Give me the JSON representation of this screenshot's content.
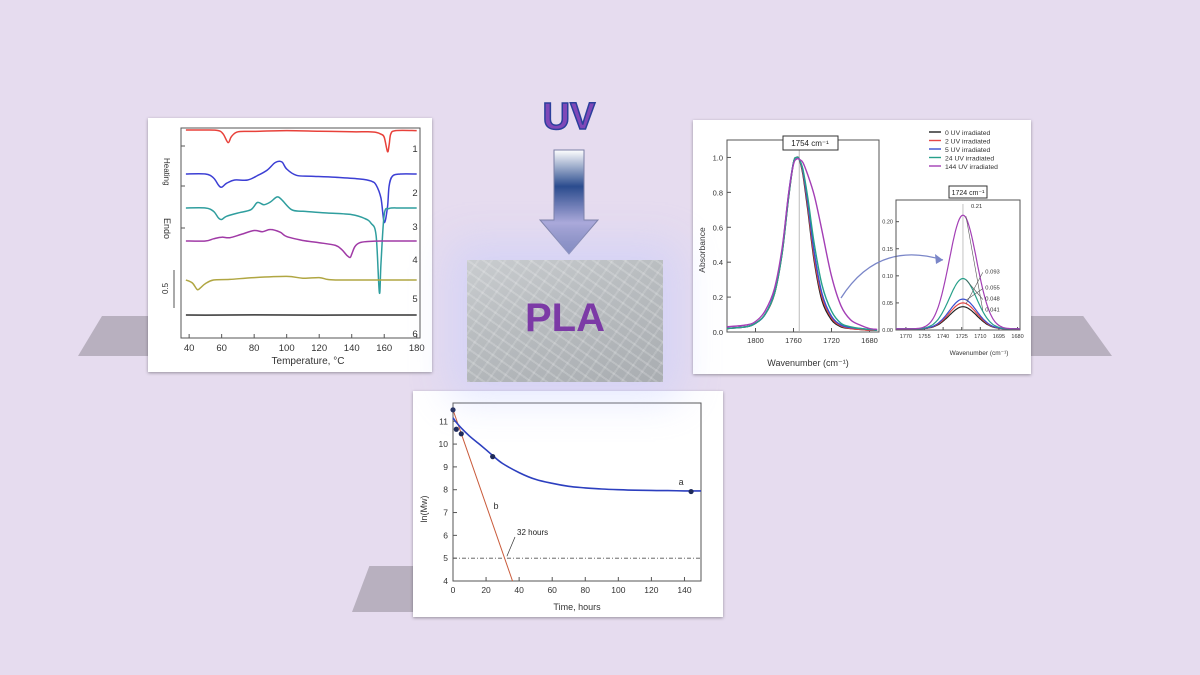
{
  "uv_label": "UV",
  "pla_label": "PLA",
  "chart_data": [
    {
      "type": "line",
      "chart": "dsc",
      "xlabel": "Temperature, °C",
      "ylabel": "Endo",
      "ylabel_top": "Heating",
      "scale_bar_label": "0.5",
      "x_ticks": [
        40,
        60,
        80,
        100,
        120,
        140,
        160,
        180
      ],
      "xlim": [
        35,
        182
      ],
      "curve_labels": [
        "1",
        "2",
        "3",
        "4",
        "5",
        "6"
      ],
      "series": [
        {
          "name": "1",
          "color": "#e8413a",
          "x": [
            38,
            50,
            58,
            61,
            64,
            66,
            70,
            80,
            100,
            120,
            140,
            150,
            155,
            158,
            160,
            162,
            163,
            164,
            167,
            180
          ],
          "y": [
            0,
            0,
            0.05,
            0.35,
            1.05,
            0.55,
            0.15,
            0.12,
            0.05,
            0.1,
            0.15,
            0.15,
            0.2,
            0.35,
            0.6,
            1.8,
            1.25,
            0.35,
            0.05,
            0.05
          ]
        },
        {
          "name": "2",
          "color": "#3c3fd4",
          "x": [
            38,
            50,
            55,
            58,
            60,
            63,
            68,
            76,
            82,
            88,
            93,
            97,
            100,
            106,
            115,
            130,
            145,
            152,
            155,
            158,
            160,
            162,
            163,
            165,
            170,
            180
          ],
          "y": [
            0,
            0,
            0.35,
            1.0,
            1.2,
            0.85,
            0.55,
            0.55,
            0.15,
            -0.35,
            -1.05,
            -1.1,
            -0.45,
            0.12,
            0.2,
            0.3,
            0.45,
            0.65,
            1.0,
            2.2,
            4.4,
            3.0,
            1.1,
            0.2,
            0,
            0
          ]
        },
        {
          "name": "3",
          "color": "#2f9e9e",
          "x": [
            38,
            50,
            55,
            58,
            60,
            63,
            70,
            78,
            82,
            86,
            90,
            94,
            97,
            103,
            110,
            125,
            140,
            148,
            152,
            155,
            157,
            158,
            160,
            163,
            170,
            180
          ],
          "y": [
            0,
            0,
            0.3,
            0.9,
            1.05,
            0.75,
            0.45,
            0.15,
            -0.5,
            -0.3,
            -0.55,
            -1.0,
            -0.75,
            0.15,
            0.3,
            0.45,
            0.6,
            0.95,
            1.4,
            2.5,
            7.7,
            5.0,
            0.6,
            0.05,
            0,
            0
          ]
        },
        {
          "name": "4",
          "color": "#a03aa6",
          "x": [
            38,
            50,
            55,
            60,
            65,
            72,
            80,
            85,
            90,
            96,
            100,
            110,
            120,
            130,
            134,
            137,
            139,
            140,
            142,
            145,
            150,
            160,
            180
          ],
          "y": [
            0,
            0,
            -0.2,
            -0.35,
            -0.3,
            -0.6,
            -0.95,
            -0.85,
            -1.05,
            -0.8,
            -0.4,
            -0.05,
            0.15,
            0.4,
            0.8,
            1.3,
            1.5,
            1.2,
            0.5,
            0.15,
            0.05,
            0,
            0
          ]
        },
        {
          "name": "5",
          "color": "#b0a642",
          "x": [
            38,
            42,
            45,
            47,
            50,
            55,
            65,
            80,
            100,
            110,
            120,
            125,
            130,
            140,
            150,
            160,
            180
          ],
          "y": [
            0,
            0.25,
            0.8,
            0.65,
            0.3,
            0,
            -0.05,
            -0.2,
            -0.3,
            -0.15,
            -0.2,
            -0.05,
            0,
            0,
            0,
            0,
            0
          ]
        },
        {
          "name": "6",
          "color": "#333333",
          "x": [
            38,
            50,
            80,
            120,
            150,
            180
          ],
          "y": [
            0,
            0.02,
            -0.02,
            0.02,
            0,
            0
          ]
        }
      ]
    },
    {
      "type": "line",
      "chart": "ftir",
      "xlabel": "Wavenumber (cm⁻¹)",
      "ylabel": "Absorbance",
      "peak_label": "1754 cm⁻¹",
      "x_ticks": [
        1800,
        1760,
        1720,
        1680
      ],
      "y_ticks": [
        0.0,
        0.2,
        0.4,
        0.6,
        0.8,
        1.0
      ],
      "xlim": [
        1830,
        1670
      ],
      "ylim": [
        0,
        1.1
      ],
      "legend": [
        "0 UV   irradiated",
        "2 UV   irradiated",
        "5 UV   irradiated",
        "24 UV   irradiated",
        "144 UV irradiated"
      ],
      "legend_colors": [
        "#222222",
        "#e54747",
        "#3a4fd0",
        "#27a08a",
        "#a33fb5"
      ],
      "series": [
        {
          "name": "0 UV   irradiated",
          "color": "#222222",
          "x": [
            1830,
            1810,
            1800,
            1790,
            1780,
            1772,
            1765,
            1760,
            1757,
            1754,
            1750,
            1745,
            1738,
            1730,
            1720,
            1710,
            1700,
            1690,
            1680,
            1672
          ],
          "y": [
            0.02,
            0.03,
            0.05,
            0.1,
            0.22,
            0.45,
            0.78,
            0.97,
            1.0,
            0.99,
            0.9,
            0.7,
            0.4,
            0.18,
            0.07,
            0.03,
            0.02,
            0.015,
            0.01,
            0.01
          ]
        },
        {
          "name": "2 UV   irradiated",
          "color": "#e54747",
          "x": [
            1830,
            1810,
            1800,
            1790,
            1780,
            1772,
            1765,
            1760,
            1757,
            1754,
            1750,
            1745,
            1738,
            1730,
            1720,
            1710,
            1700,
            1690,
            1680,
            1672
          ],
          "y": [
            0.02,
            0.03,
            0.05,
            0.1,
            0.22,
            0.46,
            0.79,
            0.97,
            1.0,
            0.99,
            0.91,
            0.72,
            0.42,
            0.2,
            0.08,
            0.035,
            0.02,
            0.015,
            0.01,
            0.01
          ]
        },
        {
          "name": "5 UV   irradiated",
          "color": "#3a4fd0",
          "x": [
            1830,
            1810,
            1800,
            1790,
            1780,
            1772,
            1765,
            1760,
            1757,
            1754,
            1750,
            1745,
            1738,
            1730,
            1720,
            1710,
            1700,
            1690,
            1680,
            1672
          ],
          "y": [
            0.02,
            0.03,
            0.05,
            0.1,
            0.23,
            0.47,
            0.8,
            0.97,
            1.0,
            0.99,
            0.92,
            0.74,
            0.45,
            0.22,
            0.09,
            0.04,
            0.025,
            0.02,
            0.015,
            0.01
          ]
        },
        {
          "name": "24 UV   irradiated",
          "color": "#27a08a",
          "x": [
            1830,
            1810,
            1800,
            1790,
            1780,
            1772,
            1765,
            1760,
            1757,
            1754,
            1750,
            1745,
            1738,
            1730,
            1720,
            1710,
            1700,
            1690,
            1680,
            1672
          ],
          "y": [
            0.02,
            0.03,
            0.05,
            0.1,
            0.22,
            0.45,
            0.78,
            0.97,
            1.0,
            0.99,
            0.93,
            0.77,
            0.5,
            0.27,
            0.12,
            0.05,
            0.03,
            0.02,
            0.015,
            0.01
          ]
        },
        {
          "name": "144 UV irradiated",
          "color": "#a33fb5",
          "x": [
            1830,
            1810,
            1800,
            1790,
            1780,
            1772,
            1765,
            1760,
            1757,
            1754,
            1750,
            1745,
            1738,
            1730,
            1720,
            1710,
            1700,
            1690,
            1680,
            1672
          ],
          "y": [
            0.03,
            0.04,
            0.06,
            0.12,
            0.25,
            0.48,
            0.8,
            0.96,
            0.99,
            0.99,
            0.97,
            0.9,
            0.78,
            0.58,
            0.32,
            0.15,
            0.07,
            0.04,
            0.02,
            0.015
          ]
        }
      ]
    },
    {
      "type": "line",
      "chart": "ftir-inset",
      "xlabel": "Wavenumber (cm⁻¹)",
      "peak_label": "1724 cm⁻¹",
      "x_ticks": [
        1770,
        1755,
        1740,
        1725,
        1710,
        1695,
        1680
      ],
      "y_ticks": [
        0.0,
        0.05,
        0.1,
        0.15,
        0.2
      ],
      "xlim": [
        1778,
        1678
      ],
      "ylim": [
        0,
        0.24
      ],
      "peak_values": [
        "0.21",
        "0.093",
        "0.055",
        "0.048",
        "0.041"
      ],
      "series": [
        {
          "name": "0 UV",
          "color": "#222222",
          "peak": 0.041
        },
        {
          "name": "2 UV",
          "color": "#e54747",
          "peak": 0.048
        },
        {
          "name": "5 UV",
          "color": "#3a4fd0",
          "peak": 0.055
        },
        {
          "name": "24 UV",
          "color": "#27a08a",
          "peak": 0.093
        },
        {
          "name": "144 UV",
          "color": "#a33fb5",
          "peak": 0.21
        }
      ]
    },
    {
      "type": "line",
      "chart": "ln-mw",
      "xlabel": "Time, hours",
      "ylabel": "ln(Mw)",
      "x_ticks": [
        0,
        20,
        40,
        60,
        80,
        100,
        120,
        140
      ],
      "y_ticks": [
        4,
        5,
        6,
        7,
        8,
        9,
        10,
        11
      ],
      "xlim": [
        0,
        150
      ],
      "ylim": [
        4,
        11.8
      ],
      "threshold_y": 5,
      "annotation": "32 hours",
      "series": [
        {
          "name": "a",
          "color": "#2c3fbf",
          "x": [
            0,
            2,
            5,
            10,
            15,
            20,
            24,
            30,
            40,
            50,
            60,
            70,
            80,
            90,
            100,
            110,
            120,
            130,
            140,
            150
          ],
          "y": [
            11.15,
            10.95,
            10.7,
            10.35,
            10.05,
            9.75,
            9.5,
            9.15,
            8.75,
            8.45,
            8.28,
            8.15,
            8.08,
            8.03,
            8.0,
            7.98,
            7.97,
            7.96,
            7.95,
            7.95
          ]
        },
        {
          "name": "b",
          "color": "#c95a3a",
          "x": [
            0,
            36
          ],
          "y": [
            11.5,
            4
          ]
        }
      ],
      "points": [
        {
          "x": 0,
          "y": 11.5
        },
        {
          "x": 2,
          "y": 10.65
        },
        {
          "x": 5,
          "y": 10.45
        },
        {
          "x": 24,
          "y": 9.45
        },
        {
          "x": 144,
          "y": 7.92
        }
      ]
    }
  ]
}
